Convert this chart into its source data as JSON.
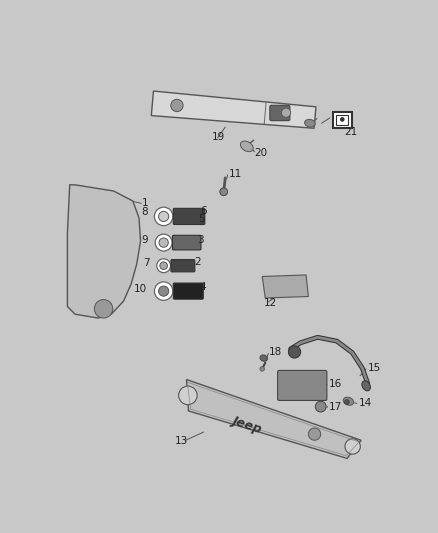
{
  "bg_color": "#c8c8c8",
  "fig_width": 4.38,
  "fig_height": 5.33,
  "line_color": "#555555",
  "dark": "#333333",
  "mid": "#888888",
  "light": "#cccccc",
  "white": "#ffffff"
}
